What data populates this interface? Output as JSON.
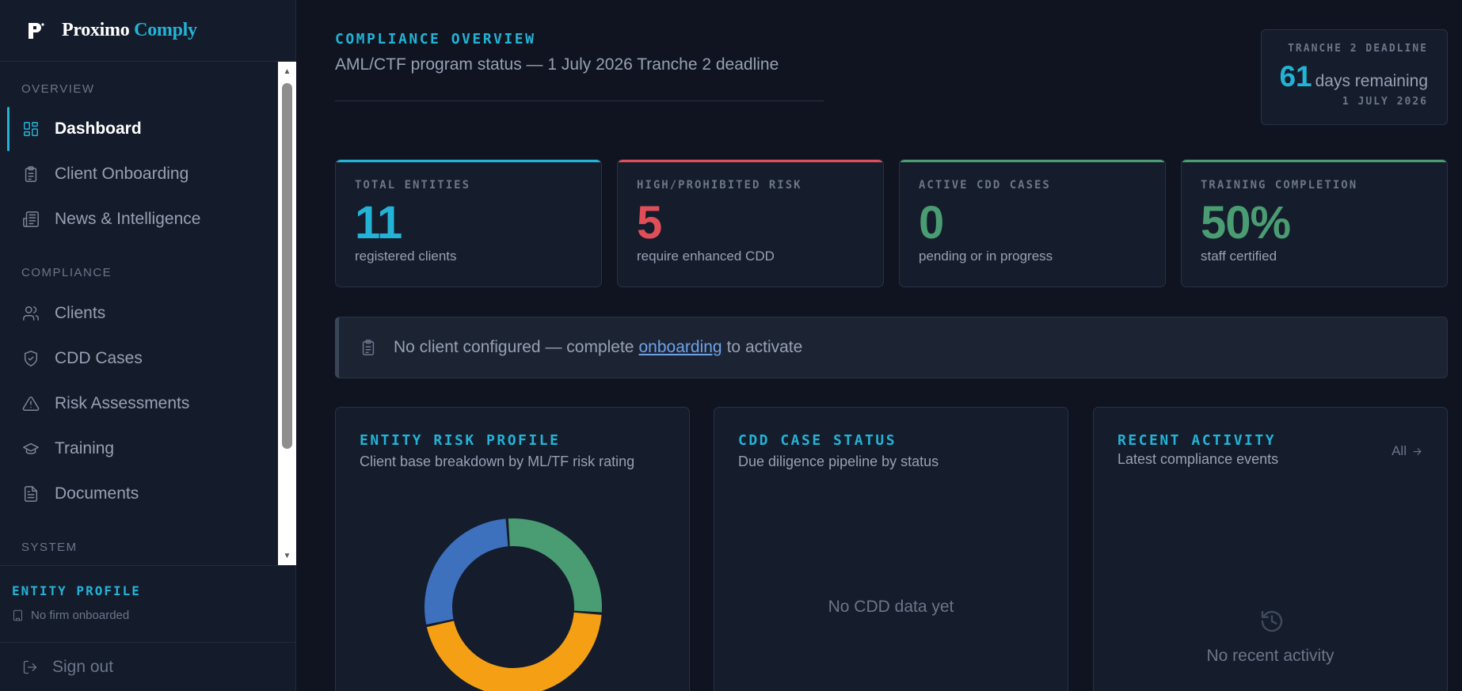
{
  "brand": {
    "name_part1": "Proximo",
    "name_part2": "Comply",
    "logo_letter": "P"
  },
  "sidebar": {
    "sections": [
      "OVERVIEW",
      "COMPLIANCE",
      "SYSTEM"
    ],
    "items": [
      {
        "label": "Dashboard",
        "icon": "dashboard-grid-icon",
        "active": true
      },
      {
        "label": "Client Onboarding",
        "icon": "clipboard-icon"
      },
      {
        "label": "News & Intelligence",
        "icon": "newspaper-icon"
      },
      {
        "label": "Clients",
        "icon": "users-icon"
      },
      {
        "label": "CDD Cases",
        "icon": "shield-check-icon"
      },
      {
        "label": "Risk Assessments",
        "icon": "warning-triangle-icon"
      },
      {
        "label": "Training",
        "icon": "graduation-cap-icon"
      },
      {
        "label": "Documents",
        "icon": "document-icon"
      }
    ],
    "entity_profile": {
      "title": "ENTITY PROFILE",
      "status": "No firm onboarded"
    },
    "signout_label": "Sign out"
  },
  "header": {
    "title": "COMPLIANCE OVERVIEW",
    "subtitle": "AML/CTF program status — 1 July 2026 Tranche 2 deadline"
  },
  "deadline": {
    "label": "TRANCHE 2 DEADLINE",
    "days": "61",
    "unit": "days remaining",
    "date": "1 JULY 2026"
  },
  "stats": [
    {
      "label": "TOTAL ENTITIES",
      "value": "11",
      "sub": "registered clients",
      "color": "#22b3d6"
    },
    {
      "label": "HIGH/PROHIBITED RISK",
      "value": "5",
      "sub": "require enhanced CDD",
      "color": "#e04f58"
    },
    {
      "label": "ACTIVE CDD CASES",
      "value": "0",
      "sub": "pending or in progress",
      "color": "#4a9c72"
    },
    {
      "label": "TRAINING COMPLETION",
      "value": "50%",
      "sub": "staff certified",
      "color": "#4a9c72"
    }
  ],
  "notice": {
    "before": "No client configured — complete",
    "link": "onboarding",
    "after": "to activate"
  },
  "panels": {
    "risk": {
      "title": "ENTITY RISK PROFILE",
      "subtitle": "Client base breakdown by ML/TF risk rating",
      "slices": [
        {
          "value": 3,
          "color": "#4a9c72"
        },
        {
          "value": 5,
          "color": "#f5a014"
        },
        {
          "value": 3,
          "color": "#3d70bd"
        }
      ]
    },
    "cdd": {
      "title": "CDD CASE STATUS",
      "subtitle": "Due diligence pipeline by status",
      "empty": "No CDD data yet"
    },
    "activity": {
      "title": "RECENT ACTIVITY",
      "subtitle": "Latest compliance events",
      "all_label": "All",
      "empty": "No recent activity"
    }
  }
}
